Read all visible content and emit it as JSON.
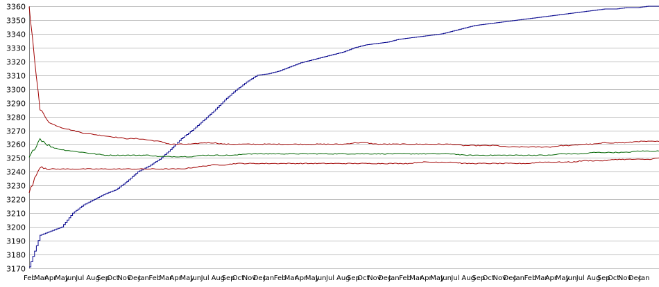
{
  "chart_data": {
    "type": "line",
    "title": "",
    "xlabel": "",
    "ylabel": "",
    "ylim": [
      3170,
      3360
    ],
    "ytick_step": 10,
    "grid": true,
    "legend": "none",
    "months": [
      "Feb",
      "Mar",
      "Apr",
      "May",
      "Jun",
      "Jul",
      "Aug",
      "Sep",
      "Oct",
      "Nov",
      "Dec",
      "Jan"
    ],
    "x_period_count": 59,
    "series": [
      {
        "color": "#00008b",
        "values": [
          3171,
          3194,
          3197,
          3200,
          3210,
          3216,
          3220,
          3224,
          3227,
          3233,
          3240,
          3244,
          3249,
          3256,
          3264,
          3270,
          3277,
          3284,
          3292,
          3299,
          3305,
          3310,
          3311,
          3313,
          3316,
          3319,
          3321,
          3323,
          3325,
          3327,
          3330,
          3332,
          3333,
          3334,
          3336,
          3337,
          3338,
          3339,
          3340,
          3342,
          3344,
          3346,
          3347,
          3348,
          3349,
          3350,
          3351,
          3352,
          3353,
          3354,
          3355,
          3356,
          3357,
          3358,
          3358,
          3359,
          3359,
          3360,
          3360
        ]
      },
      {
        "color": "#a00000",
        "values": [
          3360,
          3285,
          3275,
          3272,
          3270,
          3268,
          3267,
          3266,
          3265,
          3264,
          3264,
          3263,
          3262,
          3260,
          3260,
          3260,
          3261,
          3261,
          3260,
          3260,
          3260,
          3260,
          3260,
          3260,
          3260,
          3260,
          3260,
          3260,
          3260,
          3260,
          3261,
          3261,
          3260,
          3260,
          3260,
          3260,
          3260,
          3260,
          3260,
          3260,
          3259,
          3259,
          3259,
          3259,
          3258,
          3258,
          3258,
          3258,
          3258,
          3259,
          3259,
          3260,
          3260,
          3261,
          3261,
          3261,
          3262,
          3262,
          3262
        ]
      },
      {
        "color": "#006400",
        "values": [
          3250,
          3264,
          3258,
          3256,
          3255,
          3254,
          3253,
          3252,
          3252,
          3252,
          3252,
          3252,
          3251,
          3251,
          3251,
          3251,
          3252,
          3252,
          3252,
          3252,
          3253,
          3253,
          3253,
          3253,
          3253,
          3253,
          3253,
          3253,
          3253,
          3253,
          3253,
          3253,
          3253,
          3253,
          3253,
          3253,
          3253,
          3253,
          3253,
          3253,
          3252,
          3252,
          3252,
          3252,
          3252,
          3252,
          3252,
          3252,
          3252,
          3253,
          3253,
          3253,
          3254,
          3254,
          3254,
          3254,
          3255,
          3255,
          3255
        ]
      },
      {
        "color": "#a00000",
        "values": [
          3225,
          3244,
          3242,
          3242,
          3242,
          3242,
          3242,
          3242,
          3242,
          3242,
          3242,
          3242,
          3242,
          3242,
          3242,
          3243,
          3244,
          3245,
          3245,
          3246,
          3246,
          3246,
          3246,
          3246,
          3246,
          3246,
          3246,
          3246,
          3246,
          3246,
          3246,
          3246,
          3246,
          3246,
          3246,
          3246,
          3247,
          3247,
          3247,
          3247,
          3246,
          3246,
          3246,
          3246,
          3246,
          3246,
          3246,
          3247,
          3247,
          3247,
          3247,
          3248,
          3248,
          3248,
          3249,
          3249,
          3249,
          3249,
          3250
        ]
      }
    ]
  }
}
